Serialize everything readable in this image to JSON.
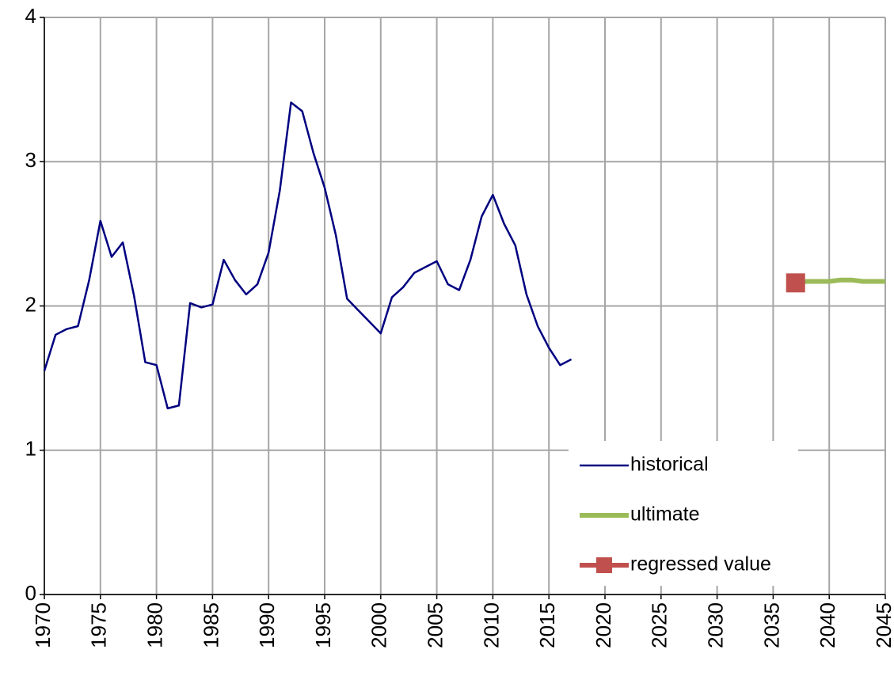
{
  "chart_data": {
    "type": "line",
    "xlim": [
      1970,
      2045
    ],
    "xticks": [
      1970,
      1975,
      1980,
      1985,
      1990,
      1995,
      2000,
      2005,
      2010,
      2015,
      2020,
      2025,
      2030,
      2035,
      2040,
      2045
    ],
    "ylim": [
      0,
      4
    ],
    "yticks": [
      0,
      1,
      2,
      3,
      4
    ],
    "grid": true,
    "legend": "lower right",
    "series": [
      {
        "name": "historical",
        "color": "#000080",
        "marker": "none",
        "x": [
          1970,
          1971,
          1972,
          1973,
          1974,
          1975,
          1976,
          1977,
          1978,
          1979,
          1980,
          1981,
          1982,
          1983,
          1984,
          1985,
          1986,
          1987,
          1988,
          1989,
          1990,
          1991,
          1992,
          1993,
          1994,
          1995,
          1996,
          1997,
          1998,
          1999,
          2000,
          2001,
          2002,
          2003,
          2004,
          2005,
          2006,
          2007,
          2008,
          2009,
          2010,
          2011,
          2012,
          2013,
          2014,
          2015,
          2016,
          2017
        ],
        "values": [
          1.55,
          1.8,
          1.84,
          1.86,
          2.18,
          2.59,
          2.34,
          2.44,
          2.07,
          1.61,
          1.59,
          1.29,
          1.31,
          2.02,
          1.99,
          2.01,
          2.32,
          2.18,
          2.08,
          2.15,
          2.37,
          2.8,
          3.41,
          3.35,
          3.06,
          2.82,
          2.49,
          2.05,
          1.97,
          1.89,
          1.81,
          2.06,
          2.13,
          2.23,
          2.27,
          2.31,
          2.15,
          2.11,
          2.32,
          2.62,
          2.77,
          2.57,
          2.42,
          2.08,
          1.86,
          1.71,
          1.59,
          1.63
        ]
      },
      {
        "name": "ultimate",
        "color": "#9bbb59",
        "marker": "none",
        "x": [
          2037,
          2038,
          2039,
          2040,
          2041,
          2042,
          2043,
          2044,
          2045
        ],
        "values": [
          2.16,
          2.17,
          2.17,
          2.17,
          2.18,
          2.18,
          2.17,
          2.17,
          2.17
        ]
      },
      {
        "name": "regressed value",
        "color": "#c0504d",
        "marker": "square",
        "x": [
          2037
        ],
        "values": [
          2.16
        ]
      }
    ]
  }
}
